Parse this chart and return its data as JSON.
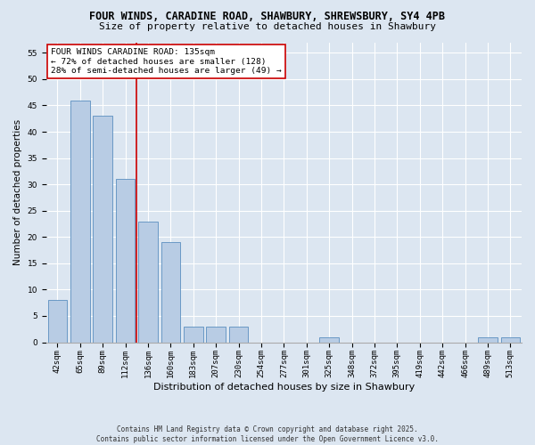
{
  "title_line1": "FOUR WINDS, CARADINE ROAD, SHAWBURY, SHREWSBURY, SY4 4PB",
  "title_line2": "Size of property relative to detached houses in Shawbury",
  "xlabel": "Distribution of detached houses by size in Shawbury",
  "ylabel": "Number of detached properties",
  "categories": [
    "42sqm",
    "65sqm",
    "89sqm",
    "112sqm",
    "136sqm",
    "160sqm",
    "183sqm",
    "207sqm",
    "230sqm",
    "254sqm",
    "277sqm",
    "301sqm",
    "325sqm",
    "348sqm",
    "372sqm",
    "395sqm",
    "419sqm",
    "442sqm",
    "466sqm",
    "489sqm",
    "513sqm"
  ],
  "values": [
    8,
    46,
    43,
    31,
    23,
    19,
    3,
    3,
    3,
    0,
    0,
    0,
    1,
    0,
    0,
    0,
    0,
    0,
    0,
    1,
    1
  ],
  "bar_color": "#b8cce4",
  "bar_edge_color": "#5a8fc0",
  "vline_color": "#cc0000",
  "vline_x_index": 3.5,
  "annotation_text": "FOUR WINDS CARADINE ROAD: 135sqm\n← 72% of detached houses are smaller (128)\n28% of semi-detached houses are larger (49) →",
  "annotation_box_color": "#ffffff",
  "annotation_box_edge": "#cc0000",
  "ylim": [
    0,
    57
  ],
  "yticks": [
    0,
    5,
    10,
    15,
    20,
    25,
    30,
    35,
    40,
    45,
    50,
    55
  ],
  "footer_line1": "Contains HM Land Registry data © Crown copyright and database right 2025.",
  "footer_line2": "Contains public sector information licensed under the Open Government Licence v3.0.",
  "bg_color": "#dce6f1",
  "plot_bg_color": "#dce6f1",
  "title_fontsize": 8.5,
  "subtitle_fontsize": 8.0,
  "axis_label_fontsize": 7.5,
  "tick_fontsize": 6.5,
  "annotation_fontsize": 6.8,
  "footer_fontsize": 5.5
}
